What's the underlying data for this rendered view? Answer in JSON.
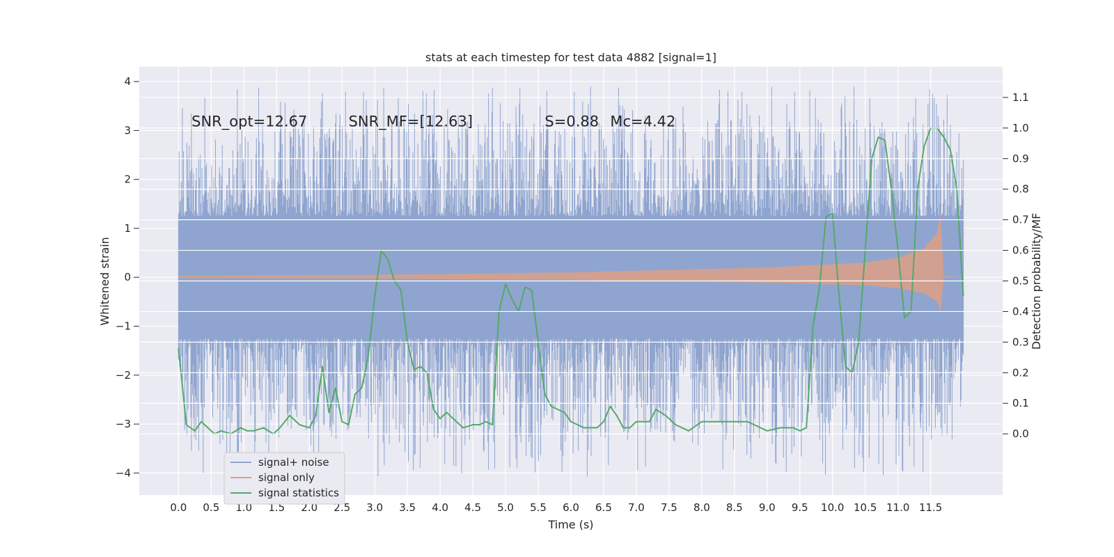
{
  "chart_data": {
    "type": "line",
    "title": "stats at each timestep for test data 4882 [signal=1]",
    "xlabel": "Time (s)",
    "ylabel": "Whitened strain",
    "y2label": "Detection probability/MF",
    "xlim": [
      -0.6,
      12.6
    ],
    "ylim": [
      -4.45,
      4.3
    ],
    "y2lim": [
      -0.2,
      1.2
    ],
    "xticks": [
      "0.0",
      "0.5",
      "1.0",
      "1.5",
      "2.0",
      "2.5",
      "3.0",
      "3.5",
      "4.0",
      "4.5",
      "5.0",
      "5.5",
      "6.0",
      "6.5",
      "7.0",
      "7.5",
      "8.0",
      "8.5",
      "9.0",
      "9.5",
      "10.0",
      "10.5",
      "11.0",
      "11.5"
    ],
    "yticks": [
      "4",
      "3",
      "2",
      "1",
      "0",
      "−1",
      "−2",
      "−3",
      "−4"
    ],
    "y2ticks": [
      "1.1",
      "1.0",
      "0.9",
      "0.8",
      "0.7",
      "0.6",
      "0.5",
      "0.4",
      "0.3",
      "0.2",
      "0.1",
      "0.0"
    ],
    "grid": true,
    "legend_position": "lower-left",
    "annotations": [
      {
        "text": "SNR_opt=12.67",
        "x": 0.2,
        "y": 3.08
      },
      {
        "text": "SNR_MF=[12.63]",
        "x": 2.6,
        "y": 3.08
      },
      {
        "text": "S=0.88",
        "x": 5.6,
        "y": 3.08
      },
      {
        "text": "Mc=4.42",
        "x": 6.6,
        "y": 3.08
      }
    ],
    "series": [
      {
        "name": "signal+ noise",
        "color": "#8fa5cf",
        "axis": "left",
        "kind": "noise",
        "x_range": [
          0.0,
          12.0
        ],
        "core_amplitude": 1.25,
        "peak_max": 3.9,
        "peak_min": -4.1
      },
      {
        "name": "signal only",
        "color": "#dd9f85",
        "axis": "left",
        "kind": "chirp",
        "envelope": {
          "x": [
            0.0,
            3.0,
            6.0,
            9.0,
            10.5,
            11.0,
            11.4,
            11.6,
            11.65,
            11.7,
            12.0
          ],
          "y": [
            0.03,
            0.05,
            0.1,
            0.2,
            0.3,
            0.4,
            0.6,
            0.9,
            1.3,
            0.02,
            0.0
          ]
        }
      },
      {
        "name": "signal statistics",
        "color": "#55a868",
        "axis": "right",
        "x": [
          0.0,
          0.12,
          0.25,
          0.35,
          0.45,
          0.55,
          0.65,
          0.8,
          0.95,
          1.05,
          1.15,
          1.3,
          1.45,
          1.55,
          1.7,
          1.85,
          2.0,
          2.1,
          2.2,
          2.3,
          2.4,
          2.5,
          2.6,
          2.7,
          2.8,
          2.9,
          3.0,
          3.1,
          3.2,
          3.3,
          3.4,
          3.5,
          3.6,
          3.7,
          3.8,
          3.9,
          4.0,
          4.1,
          4.2,
          4.35,
          4.5,
          4.6,
          4.7,
          4.8,
          4.9,
          5.0,
          5.1,
          5.2,
          5.3,
          5.4,
          5.5,
          5.6,
          5.7,
          5.8,
          5.9,
          6.0,
          6.2,
          6.4,
          6.5,
          6.6,
          6.7,
          6.8,
          6.9,
          7.0,
          7.2,
          7.3,
          7.45,
          7.6,
          7.8,
          8.0,
          8.2,
          8.5,
          8.7,
          8.9,
          9.0,
          9.2,
          9.4,
          9.5,
          9.6,
          9.7,
          9.8,
          9.9,
          10.0,
          10.1,
          10.2,
          10.3,
          10.4,
          10.5,
          10.6,
          10.7,
          10.8,
          10.9,
          11.0,
          11.1,
          11.2,
          11.3,
          11.4,
          11.5,
          11.6,
          11.7,
          11.8,
          11.9,
          12.0
        ],
        "y": [
          0.28,
          0.03,
          0.01,
          0.04,
          0.02,
          0.0,
          0.01,
          0.0,
          0.02,
          0.01,
          0.01,
          0.02,
          0.0,
          0.02,
          0.06,
          0.03,
          0.02,
          0.06,
          0.22,
          0.07,
          0.15,
          0.04,
          0.03,
          0.13,
          0.15,
          0.25,
          0.45,
          0.6,
          0.57,
          0.5,
          0.47,
          0.3,
          0.21,
          0.22,
          0.2,
          0.08,
          0.05,
          0.07,
          0.05,
          0.02,
          0.03,
          0.03,
          0.04,
          0.03,
          0.4,
          0.49,
          0.44,
          0.4,
          0.48,
          0.47,
          0.3,
          0.13,
          0.09,
          0.08,
          0.07,
          0.04,
          0.02,
          0.02,
          0.04,
          0.09,
          0.06,
          0.02,
          0.02,
          0.04,
          0.04,
          0.08,
          0.06,
          0.03,
          0.01,
          0.04,
          0.04,
          0.04,
          0.04,
          0.02,
          0.01,
          0.02,
          0.02,
          0.01,
          0.02,
          0.35,
          0.48,
          0.71,
          0.72,
          0.45,
          0.22,
          0.2,
          0.3,
          0.6,
          0.9,
          0.97,
          0.96,
          0.8,
          0.6,
          0.38,
          0.4,
          0.8,
          0.94,
          1.0,
          1.0,
          0.97,
          0.93,
          0.8,
          0.45
        ]
      }
    ]
  }
}
